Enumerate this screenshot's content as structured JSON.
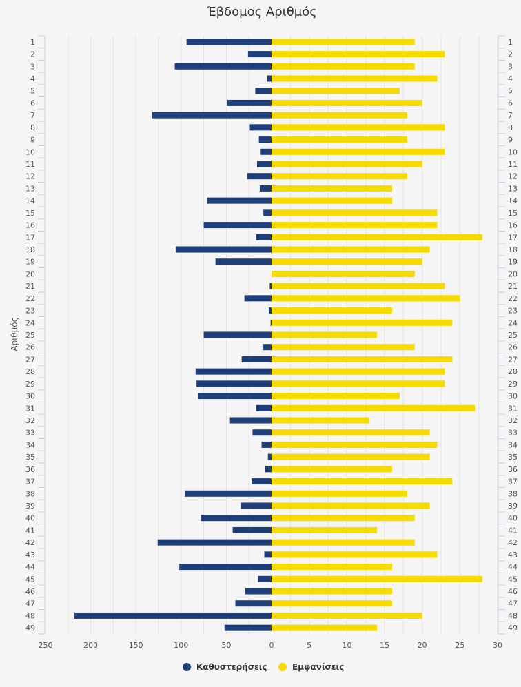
{
  "chart_data": {
    "type": "bar",
    "orientation": "horizontal",
    "title": "Έβδομος Αριθμός",
    "ylabel": "Αριθμός",
    "categories": [
      "1",
      "2",
      "3",
      "4",
      "5",
      "6",
      "7",
      "8",
      "9",
      "10",
      "11",
      "12",
      "13",
      "14",
      "15",
      "16",
      "17",
      "18",
      "19",
      "20",
      "21",
      "22",
      "23",
      "24",
      "25",
      "26",
      "27",
      "28",
      "29",
      "30",
      "31",
      "32",
      "33",
      "34",
      "35",
      "36",
      "37",
      "38",
      "39",
      "40",
      "41",
      "42",
      "43",
      "44",
      "45",
      "46",
      "47",
      "48",
      "49"
    ],
    "series": [
      {
        "name": "Καθυστερήσεις",
        "color": "#1f3f7a",
        "axis": "left",
        "xlim": [
          0,
          250
        ],
        "ticks": [
          250,
          200,
          150,
          100,
          50,
          0
        ],
        "values": [
          94,
          26,
          107,
          5,
          18,
          49,
          132,
          24,
          14,
          12,
          16,
          27,
          13,
          71,
          9,
          75,
          17,
          106,
          62,
          0,
          2,
          30,
          3,
          1,
          75,
          10,
          33,
          84,
          83,
          81,
          17,
          46,
          21,
          11,
          4,
          7,
          22,
          96,
          34,
          78,
          43,
          126,
          8,
          102,
          15,
          29,
          40,
          218,
          52
        ]
      },
      {
        "name": "Εμφανίσεις",
        "color": "#f5db00",
        "axis": "right",
        "xlim": [
          0,
          30
        ],
        "ticks": [
          0,
          5,
          10,
          15,
          20,
          25,
          30
        ],
        "values": [
          19,
          23,
          19,
          22,
          17,
          20,
          18,
          23,
          18,
          23,
          20,
          18,
          16,
          16,
          22,
          22,
          28,
          21,
          20,
          19,
          23,
          25,
          16,
          24,
          14,
          19,
          24,
          23,
          23,
          17,
          27,
          13,
          21,
          22,
          21,
          16,
          24,
          18,
          21,
          19,
          14,
          19,
          22,
          16,
          28,
          16,
          16,
          20,
          14
        ]
      }
    ],
    "grid": true,
    "legend_position": "bottom-center"
  }
}
